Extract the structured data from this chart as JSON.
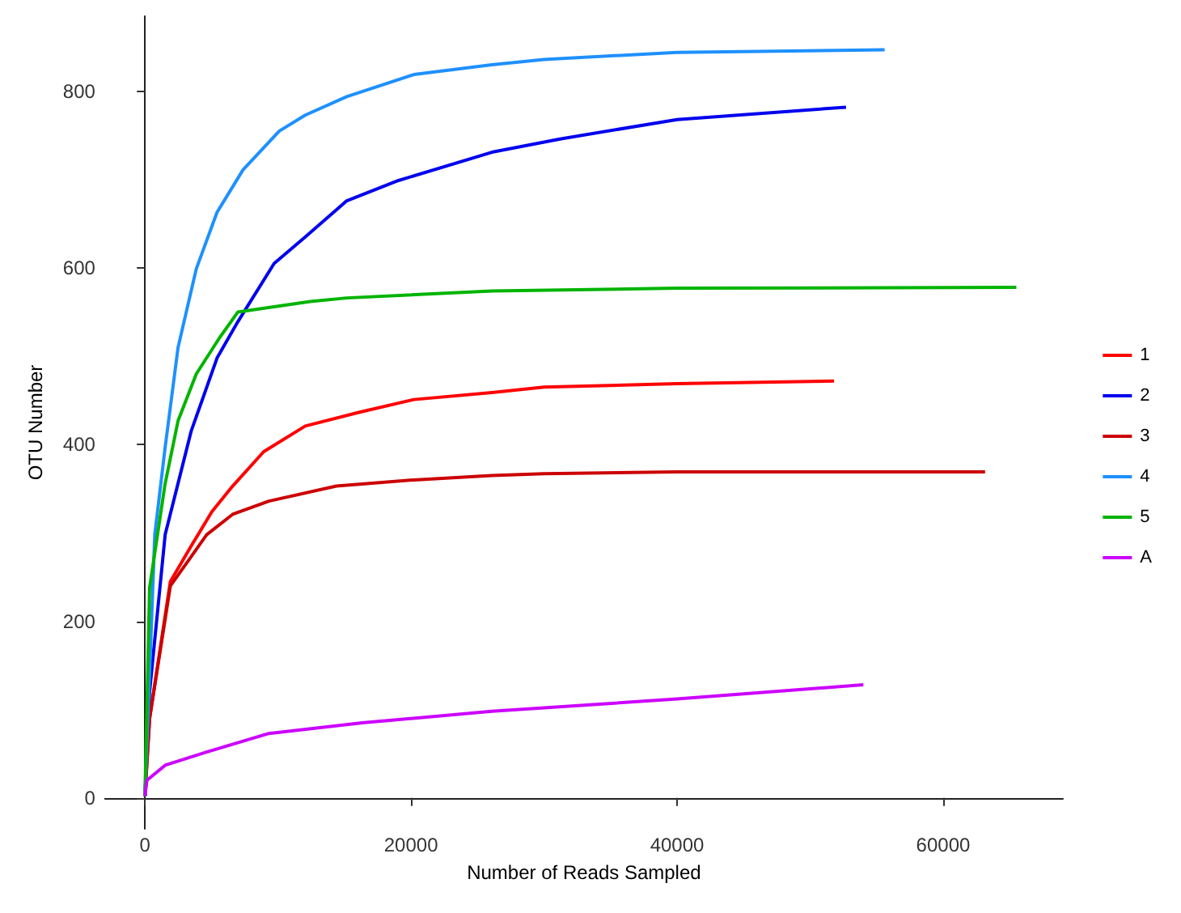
{
  "chart_data": {
    "type": "line",
    "xlabel": "Number of Reads Sampled",
    "ylabel": "OTU Number",
    "xlim": [
      -3000,
      69000
    ],
    "ylim": [
      -35,
      885
    ],
    "xticks": [
      0,
      20000,
      40000,
      60000
    ],
    "yticks": [
      0,
      200,
      400,
      600,
      800
    ],
    "grid": false,
    "legend": "right",
    "marker": "none",
    "line_style": "solid",
    "series": [
      {
        "name": "1",
        "color": "#ff0000",
        "x": [
          0,
          350,
          1910,
          3470,
          5030,
          6590,
          8930,
          12050,
          15950,
          20230,
          26080,
          30000,
          40000,
          51800
        ],
        "values": [
          2,
          90,
          245,
          285,
          324,
          353,
          392,
          421,
          436,
          451,
          459,
          465,
          469,
          472
        ]
      },
      {
        "name": "2",
        "color": "#0000ee",
        "x": [
          0,
          350,
          1520,
          3470,
          5420,
          6980,
          9710,
          12050,
          15170,
          19060,
          26080,
          31200,
          40000,
          52700
        ],
        "values": [
          2,
          120,
          298,
          415,
          498,
          539,
          605,
          635,
          676,
          699,
          731,
          746,
          768,
          782
        ]
      },
      {
        "name": "3",
        "color": "#cc0000",
        "x": [
          0,
          350,
          1910,
          3470,
          4640,
          6590,
          9320,
          14390,
          20230,
          26080,
          30000,
          40000,
          63150
        ],
        "values": [
          2,
          90,
          240,
          273,
          298,
          321,
          336,
          353,
          360,
          365,
          367,
          369,
          369
        ]
      },
      {
        "name": "4",
        "color": "#1e90ff",
        "x": [
          0,
          740,
          1520,
          2490,
          3860,
          5420,
          7370,
          10100,
          12050,
          15170,
          20230,
          26080,
          30000,
          40000,
          55600
        ],
        "values": [
          2,
          298,
          397,
          510,
          599,
          663,
          711,
          755,
          773,
          794,
          819,
          830,
          836,
          844,
          847
        ]
      },
      {
        "name": "5",
        "color": "#00b400",
        "x": [
          0,
          350,
          1520,
          2490,
          3860,
          5610,
          6980,
          12430,
          15170,
          26080,
          40000,
          65500
        ],
        "values": [
          2,
          238,
          356,
          427,
          480,
          521,
          550,
          562,
          566,
          574,
          577,
          578
        ]
      },
      {
        "name": "A",
        "color": "#cc00ff",
        "x": [
          0,
          150,
          1520,
          4640,
          9320,
          16340,
          26080,
          40000,
          54000
        ],
        "values": [
          2,
          20,
          37,
          52,
          73,
          85,
          98,
          112,
          128
        ]
      }
    ]
  }
}
